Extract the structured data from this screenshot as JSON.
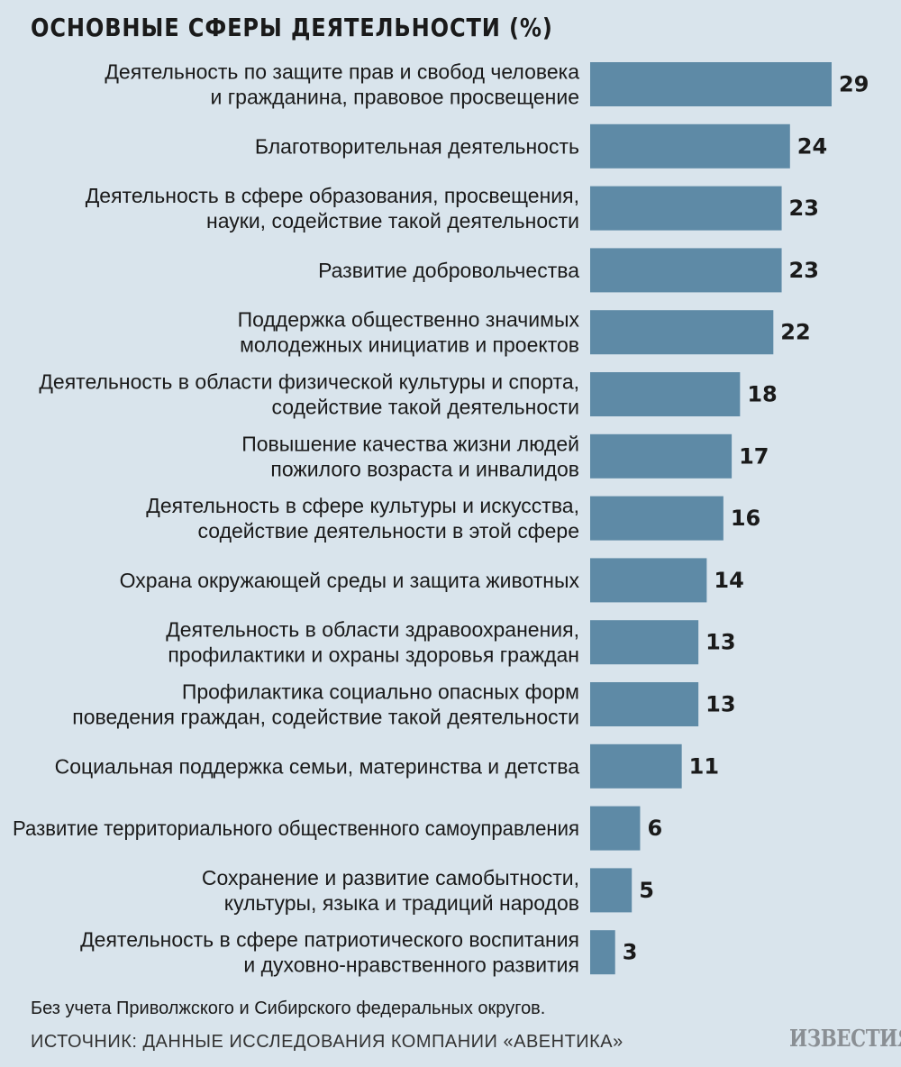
{
  "title": "ОСНОВНЫЕ СФЕРЫ ДЕЯТЕЛЬНОСТИ (%)",
  "note": "Без учета Приволжского и Сибирского федеральных округов.",
  "source": "ИСТОЧНИК: ДАННЫЕ ИССЛЕДОВАНИЯ КОМПАНИИ «АВЕНТИКА»",
  "logo": "ИЗВЕСТИЯ",
  "colors": {
    "bar": "#5e8aa6",
    "background": "#d9e4ec"
  },
  "chart_data": {
    "type": "bar",
    "orientation": "horizontal",
    "title": "ОСНОВНЫЕ СФЕРЫ ДЕЯТЕЛЬНОСТИ (%)",
    "categories": [
      [
        "Деятельность по защите прав и свобод человека",
        "и гражданина, правовое просвещение"
      ],
      [
        "Благотворительная деятельность"
      ],
      [
        "Деятельность в сфере образования, просвещения,",
        "науки, содействие такой деятельности"
      ],
      [
        "Развитие добровольчества"
      ],
      [
        "Поддержка общественно значимых",
        "молодежных инициатив и проектов"
      ],
      [
        "Деятельность в области физической культуры и спорта,",
        "содействие такой деятельности"
      ],
      [
        "Повышение качества жизни людей",
        "пожилого возраста и инвалидов"
      ],
      [
        "Деятельность в сфере культуры и искусства,",
        "содействие деятельности в этой сфере"
      ],
      [
        "Охрана окружающей среды и защита животных"
      ],
      [
        "Деятельность в области здравоохранения,",
        "профилактики и охраны здоровья граждан"
      ],
      [
        "Профилактика социально опасных форм",
        "поведения граждан, содействие такой деятельности"
      ],
      [
        "Социальная поддержка семьи, материнства и детства"
      ],
      [
        "Развитие территориального общественного самоуправления"
      ],
      [
        "Сохранение и развитие самобытности,",
        "культуры, языка и традиций народов"
      ],
      [
        "Деятельность в сфере патриотического воспитания",
        "и духовно-нравственного развития"
      ]
    ],
    "values": [
      29,
      24,
      23,
      23,
      22,
      18,
      17,
      16,
      14,
      13,
      13,
      11,
      6,
      5,
      3
    ],
    "xlim": [
      0,
      29
    ],
    "grid": false,
    "legend": "none",
    "data_labels": true
  }
}
